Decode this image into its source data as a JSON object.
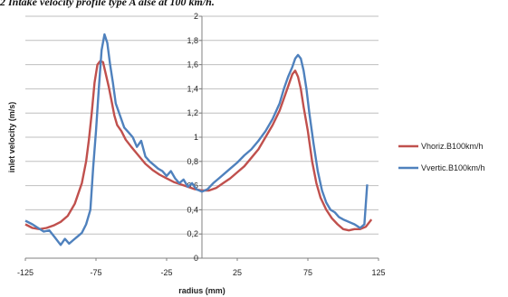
{
  "caption": "2 Intake velocity profile type A alse at 100 km/h.",
  "chart_data": {
    "type": "line",
    "title": "",
    "xlabel": "radius (mm)",
    "ylabel": "inlet velocity (m/s)",
    "xlim": [
      -125,
      125
    ],
    "ylim": [
      0,
      2
    ],
    "xticks": [
      -125,
      -75,
      -25,
      25,
      75,
      125
    ],
    "xtick_labels": [
      "-125",
      "-75",
      "-25",
      "25",
      "75",
      "125"
    ],
    "yticks": [
      0,
      0.2,
      0.4,
      0.6,
      0.8,
      1,
      1.2,
      1.4,
      1.6,
      1.8,
      2
    ],
    "ytick_labels": [
      "0",
      "0,2",
      "0,4",
      "0,6",
      "0,8",
      "1",
      "1,2",
      "1,4",
      "1,6",
      "1,8",
      "2"
    ],
    "grid": true,
    "legend_position": "right",
    "series": [
      {
        "name": "Vhoriz.B100km/h",
        "color": "#c0504d",
        "x": [
          -125,
          -120,
          -115,
          -110,
          -105,
          -100,
          -95,
          -90,
          -85,
          -82,
          -80,
          -78,
          -76,
          -74,
          -72,
          -70,
          -68,
          -66,
          -64,
          -62,
          -60,
          -57,
          -54,
          -50,
          -45,
          -40,
          -35,
          -30,
          -25,
          -20,
          -15,
          -10,
          -5,
          0,
          5,
          10,
          15,
          20,
          25,
          30,
          35,
          40,
          45,
          50,
          55,
          58,
          61,
          64,
          66,
          68,
          70,
          72,
          75,
          78,
          81,
          84,
          88,
          92,
          96,
          100,
          104,
          108,
          112,
          116,
          120
        ],
        "y": [
          0.28,
          0.25,
          0.24,
          0.25,
          0.27,
          0.3,
          0.35,
          0.45,
          0.62,
          0.8,
          0.98,
          1.2,
          1.45,
          1.6,
          1.63,
          1.62,
          1.52,
          1.42,
          1.3,
          1.18,
          1.1,
          1.05,
          0.98,
          0.92,
          0.85,
          0.78,
          0.73,
          0.69,
          0.66,
          0.63,
          0.61,
          0.59,
          0.57,
          0.56,
          0.56,
          0.58,
          0.62,
          0.66,
          0.71,
          0.76,
          0.83,
          0.9,
          1.0,
          1.1,
          1.22,
          1.32,
          1.42,
          1.52,
          1.55,
          1.5,
          1.4,
          1.25,
          1.05,
          0.8,
          0.62,
          0.5,
          0.4,
          0.33,
          0.28,
          0.24,
          0.23,
          0.24,
          0.24,
          0.26,
          0.32
        ]
      },
      {
        "name": "Vvertic.B100km/h",
        "color": "#4f81bd",
        "x": [
          -125,
          -120,
          -116,
          -112,
          -108,
          -104,
          -100,
          -97,
          -94,
          -91,
          -88,
          -85,
          -82,
          -79,
          -77,
          -75,
          -73,
          -71,
          -69,
          -67,
          -65,
          -63,
          -61,
          -58,
          -55,
          -52,
          -49,
          -46,
          -43,
          -40,
          -37,
          -34,
          -31,
          -28,
          -25,
          -22,
          -19,
          -16,
          -13,
          -10,
          -7,
          -4,
          0,
          4,
          8,
          12,
          16,
          20,
          25,
          30,
          35,
          40,
          45,
          50,
          55,
          58,
          61,
          64,
          66,
          68,
          70,
          72,
          74,
          76,
          79,
          82,
          85,
          88,
          91,
          94,
          97,
          100,
          104,
          108,
          112,
          115,
          116,
          117
        ],
        "y": [
          0.31,
          0.28,
          0.25,
          0.22,
          0.23,
          0.17,
          0.11,
          0.16,
          0.12,
          0.15,
          0.18,
          0.21,
          0.28,
          0.4,
          0.75,
          1.05,
          1.4,
          1.72,
          1.85,
          1.78,
          1.6,
          1.45,
          1.28,
          1.18,
          1.08,
          1.04,
          1.0,
          0.92,
          0.97,
          0.84,
          0.8,
          0.77,
          0.74,
          0.72,
          0.68,
          0.72,
          0.66,
          0.62,
          0.65,
          0.59,
          0.62,
          0.57,
          0.55,
          0.57,
          0.62,
          0.66,
          0.7,
          0.74,
          0.79,
          0.85,
          0.9,
          0.97,
          1.05,
          1.15,
          1.28,
          1.4,
          1.5,
          1.58,
          1.65,
          1.68,
          1.65,
          1.55,
          1.4,
          1.2,
          0.95,
          0.72,
          0.56,
          0.46,
          0.4,
          0.38,
          0.34,
          0.32,
          0.3,
          0.28,
          0.25,
          0.28,
          0.45,
          0.61
        ]
      }
    ]
  }
}
